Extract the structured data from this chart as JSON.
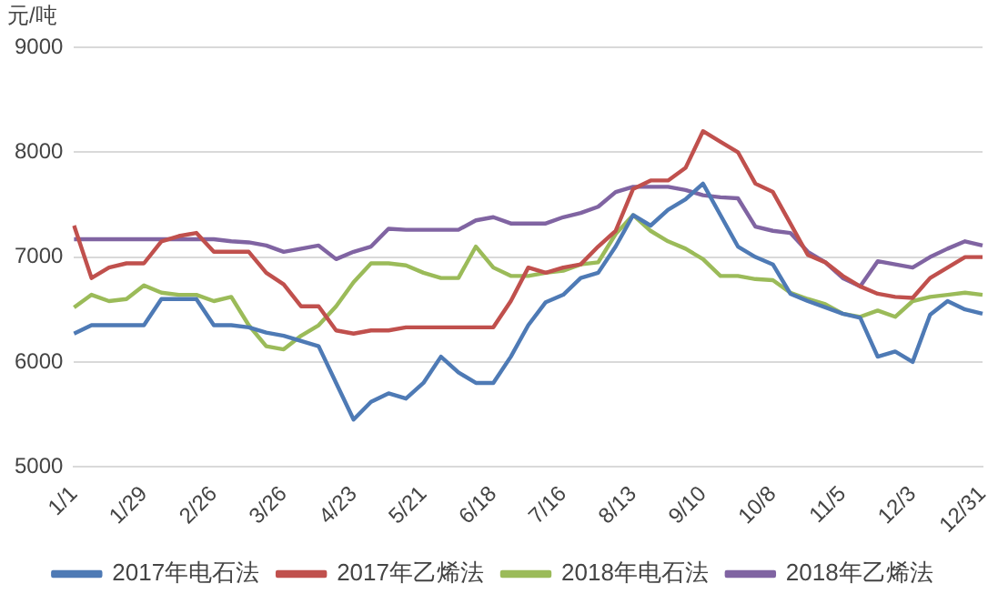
{
  "chart_data": {
    "type": "line",
    "ylabel": "元/吨",
    "categories": [
      "1/1",
      null,
      null,
      null,
      "1/29",
      null,
      null,
      null,
      "2/26",
      null,
      null,
      null,
      "3/26",
      null,
      null,
      null,
      "4/23",
      null,
      null,
      null,
      "5/21",
      null,
      null,
      null,
      "6/18",
      null,
      null,
      null,
      "7/16",
      null,
      null,
      null,
      "8/13",
      null,
      null,
      null,
      "9/10",
      null,
      null,
      null,
      "10/8",
      null,
      null,
      null,
      "11/5",
      null,
      null,
      null,
      "12/3",
      null,
      null,
      null,
      "12/31"
    ],
    "series": [
      {
        "name": "2017年电石法",
        "color": "#4e7ab5",
        "values": [
          6270,
          6350,
          6350,
          6350,
          6350,
          6600,
          6600,
          6600,
          6350,
          6350,
          6330,
          6280,
          6250,
          6200,
          6150,
          5800,
          5450,
          5620,
          5700,
          5650,
          5800,
          6050,
          5900,
          5800,
          5800,
          6050,
          6350,
          6570,
          6640,
          6800,
          6850,
          7100,
          7400,
          7300,
          7450,
          7550,
          7700,
          7400,
          7100,
          7000,
          6930,
          6650,
          6580,
          6520,
          6460,
          6420,
          6050,
          6100,
          6000,
          6450,
          6580,
          6500,
          6460
        ]
      },
      {
        "name": "2017年乙烯法",
        "color": "#c0504d",
        "values": [
          7300,
          6800,
          6900,
          6940,
          6940,
          7150,
          7200,
          7230,
          7050,
          7050,
          7050,
          6850,
          6740,
          6530,
          6530,
          6300,
          6270,
          6300,
          6300,
          6330,
          6330,
          6330,
          6330,
          6330,
          6330,
          6580,
          6900,
          6850,
          6900,
          6930,
          7100,
          7250,
          7650,
          7730,
          7730,
          7850,
          8200,
          8100,
          8000,
          7700,
          7620,
          7320,
          7020,
          6950,
          6820,
          6720,
          6650,
          6620,
          6610,
          6800,
          6900,
          7000,
          7000
        ]
      },
      {
        "name": "2018年电石法",
        "color": "#9bbb59",
        "values": [
          6520,
          6640,
          6580,
          6600,
          6730,
          6660,
          6640,
          6640,
          6580,
          6620,
          6350,
          6150,
          6120,
          6250,
          6350,
          6530,
          6760,
          6940,
          6940,
          6920,
          6850,
          6800,
          6800,
          7100,
          6900,
          6820,
          6820,
          6850,
          6870,
          6930,
          6950,
          7220,
          7400,
          7250,
          7150,
          7080,
          6980,
          6820,
          6820,
          6790,
          6780,
          6660,
          6600,
          6550,
          6460,
          6430,
          6490,
          6430,
          6580,
          6620,
          6640,
          6660,
          6640
        ]
      },
      {
        "name": "2018年乙烯法",
        "color": "#8064a2",
        "values": [
          7170,
          7170,
          7170,
          7170,
          7170,
          7170,
          7170,
          7170,
          7170,
          7150,
          7140,
          7110,
          7050,
          7080,
          7110,
          6980,
          7050,
          7100,
          7270,
          7260,
          7260,
          7260,
          7260,
          7350,
          7380,
          7320,
          7320,
          7320,
          7380,
          7420,
          7480,
          7620,
          7670,
          7670,
          7670,
          7640,
          7590,
          7570,
          7560,
          7290,
          7250,
          7230,
          7050,
          6950,
          6800,
          6720,
          6960,
          6930,
          6900,
          7000,
          7080,
          7150,
          7110
        ]
      }
    ],
    "ylim": [
      5000,
      9000
    ],
    "yticks": [
      5000,
      6000,
      7000,
      8000,
      9000
    ],
    "grid": "y",
    "legend": "bottom",
    "marker": "none",
    "line_style": "solid"
  }
}
